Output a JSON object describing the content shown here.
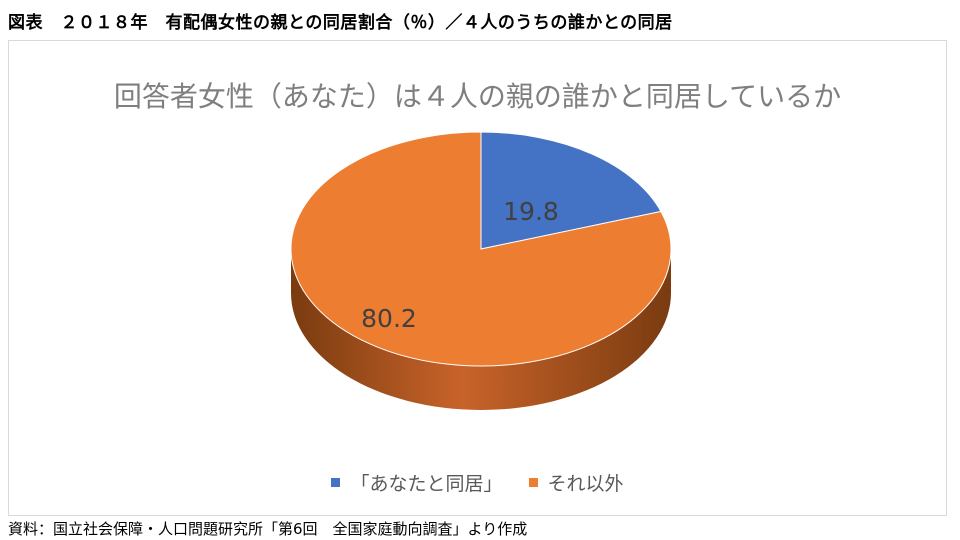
{
  "page_title": "図表　２０１８年　有配偶女性の親との同居割合（％）／４人のうちの誰かとの同居",
  "source": "資料：国立社会保障・人口問題研究所「第6回　全国家庭動向調査」より作成",
  "chart_data": {
    "type": "pie",
    "style": "3d",
    "title": "回答者女性（あなた）は４人の親の誰かと同居しているか",
    "categories": [
      "「あなたと同居」",
      "それ以外"
    ],
    "values": [
      19.8,
      80.2
    ],
    "value_labels": [
      "19.8",
      "80.2"
    ],
    "colors": [
      "#4472c4",
      "#ed7d31"
    ],
    "legend_position": "bottom"
  }
}
